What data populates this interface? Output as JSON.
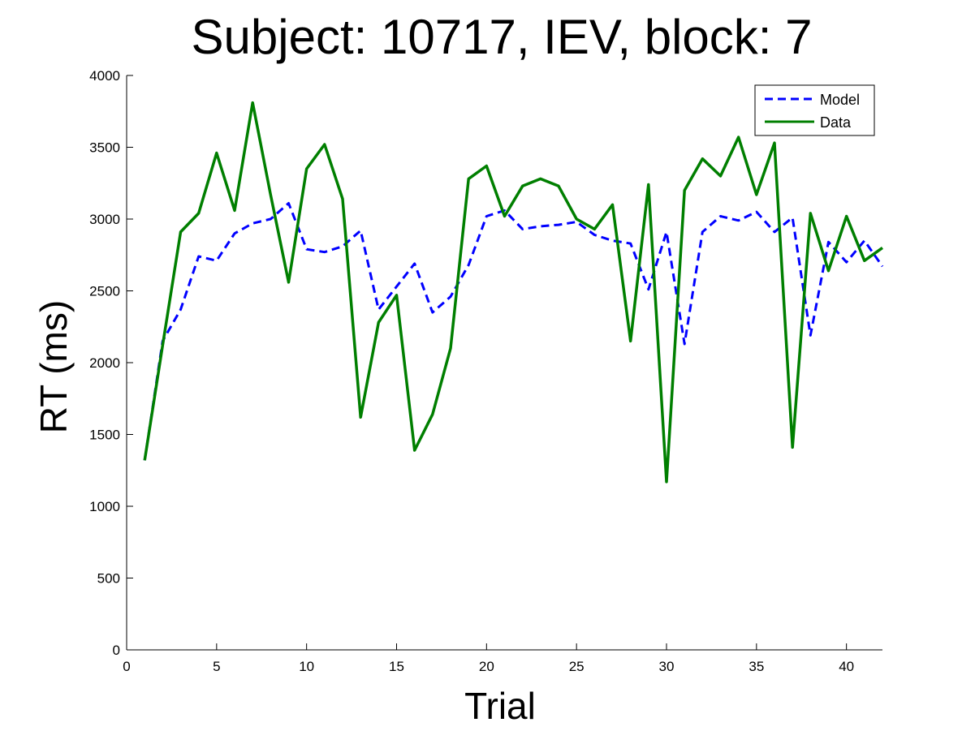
{
  "chart_data": {
    "type": "line",
    "title": "Subject: 10717, IEV, block: 7",
    "xlabel": "Trial",
    "ylabel": "RT (ms)",
    "xlim": [
      0,
      42
    ],
    "ylim": [
      0,
      4000
    ],
    "xticks": [
      0,
      5,
      10,
      15,
      20,
      25,
      30,
      35,
      40
    ],
    "yticks": [
      0,
      500,
      1000,
      1500,
      2000,
      2500,
      3000,
      3500,
      4000
    ],
    "grid": false,
    "legend_position": "top-right",
    "x": [
      1,
      2,
      3,
      4,
      5,
      6,
      7,
      8,
      9,
      10,
      11,
      12,
      13,
      14,
      15,
      16,
      17,
      18,
      19,
      20,
      21,
      22,
      23,
      24,
      25,
      26,
      27,
      28,
      29,
      30,
      31,
      32,
      33,
      34,
      35,
      36,
      37,
      38,
      39,
      40,
      41,
      42
    ],
    "series": [
      {
        "name": "Model",
        "color": "#0000ff",
        "style": "dashed",
        "values": [
          1320,
          2150,
          2370,
          2740,
          2710,
          2900,
          2970,
          3000,
          3110,
          2790,
          2770,
          2810,
          2920,
          2370,
          2530,
          2690,
          2350,
          2460,
          2680,
          3020,
          3060,
          2930,
          2950,
          2960,
          2980,
          2890,
          2850,
          2830,
          2510,
          2910,
          2130,
          2910,
          3020,
          2990,
          3050,
          2910,
          3010,
          2190,
          2840,
          2700,
          2850,
          2670
        ]
      },
      {
        "name": "Data",
        "color": "#007f00",
        "style": "solid",
        "values": [
          1320,
          2120,
          2910,
          3040,
          3460,
          3060,
          3810,
          3170,
          2560,
          3350,
          3520,
          3140,
          1620,
          2280,
          2470,
          1390,
          1640,
          2100,
          3280,
          3370,
          3020,
          3230,
          3280,
          3230,
          3000,
          2930,
          3100,
          2150,
          3240,
          1170,
          3200,
          3420,
          3300,
          3570,
          3170,
          3530,
          1410,
          3040,
          2640,
          3020,
          2710,
          2800
        ]
      }
    ]
  }
}
